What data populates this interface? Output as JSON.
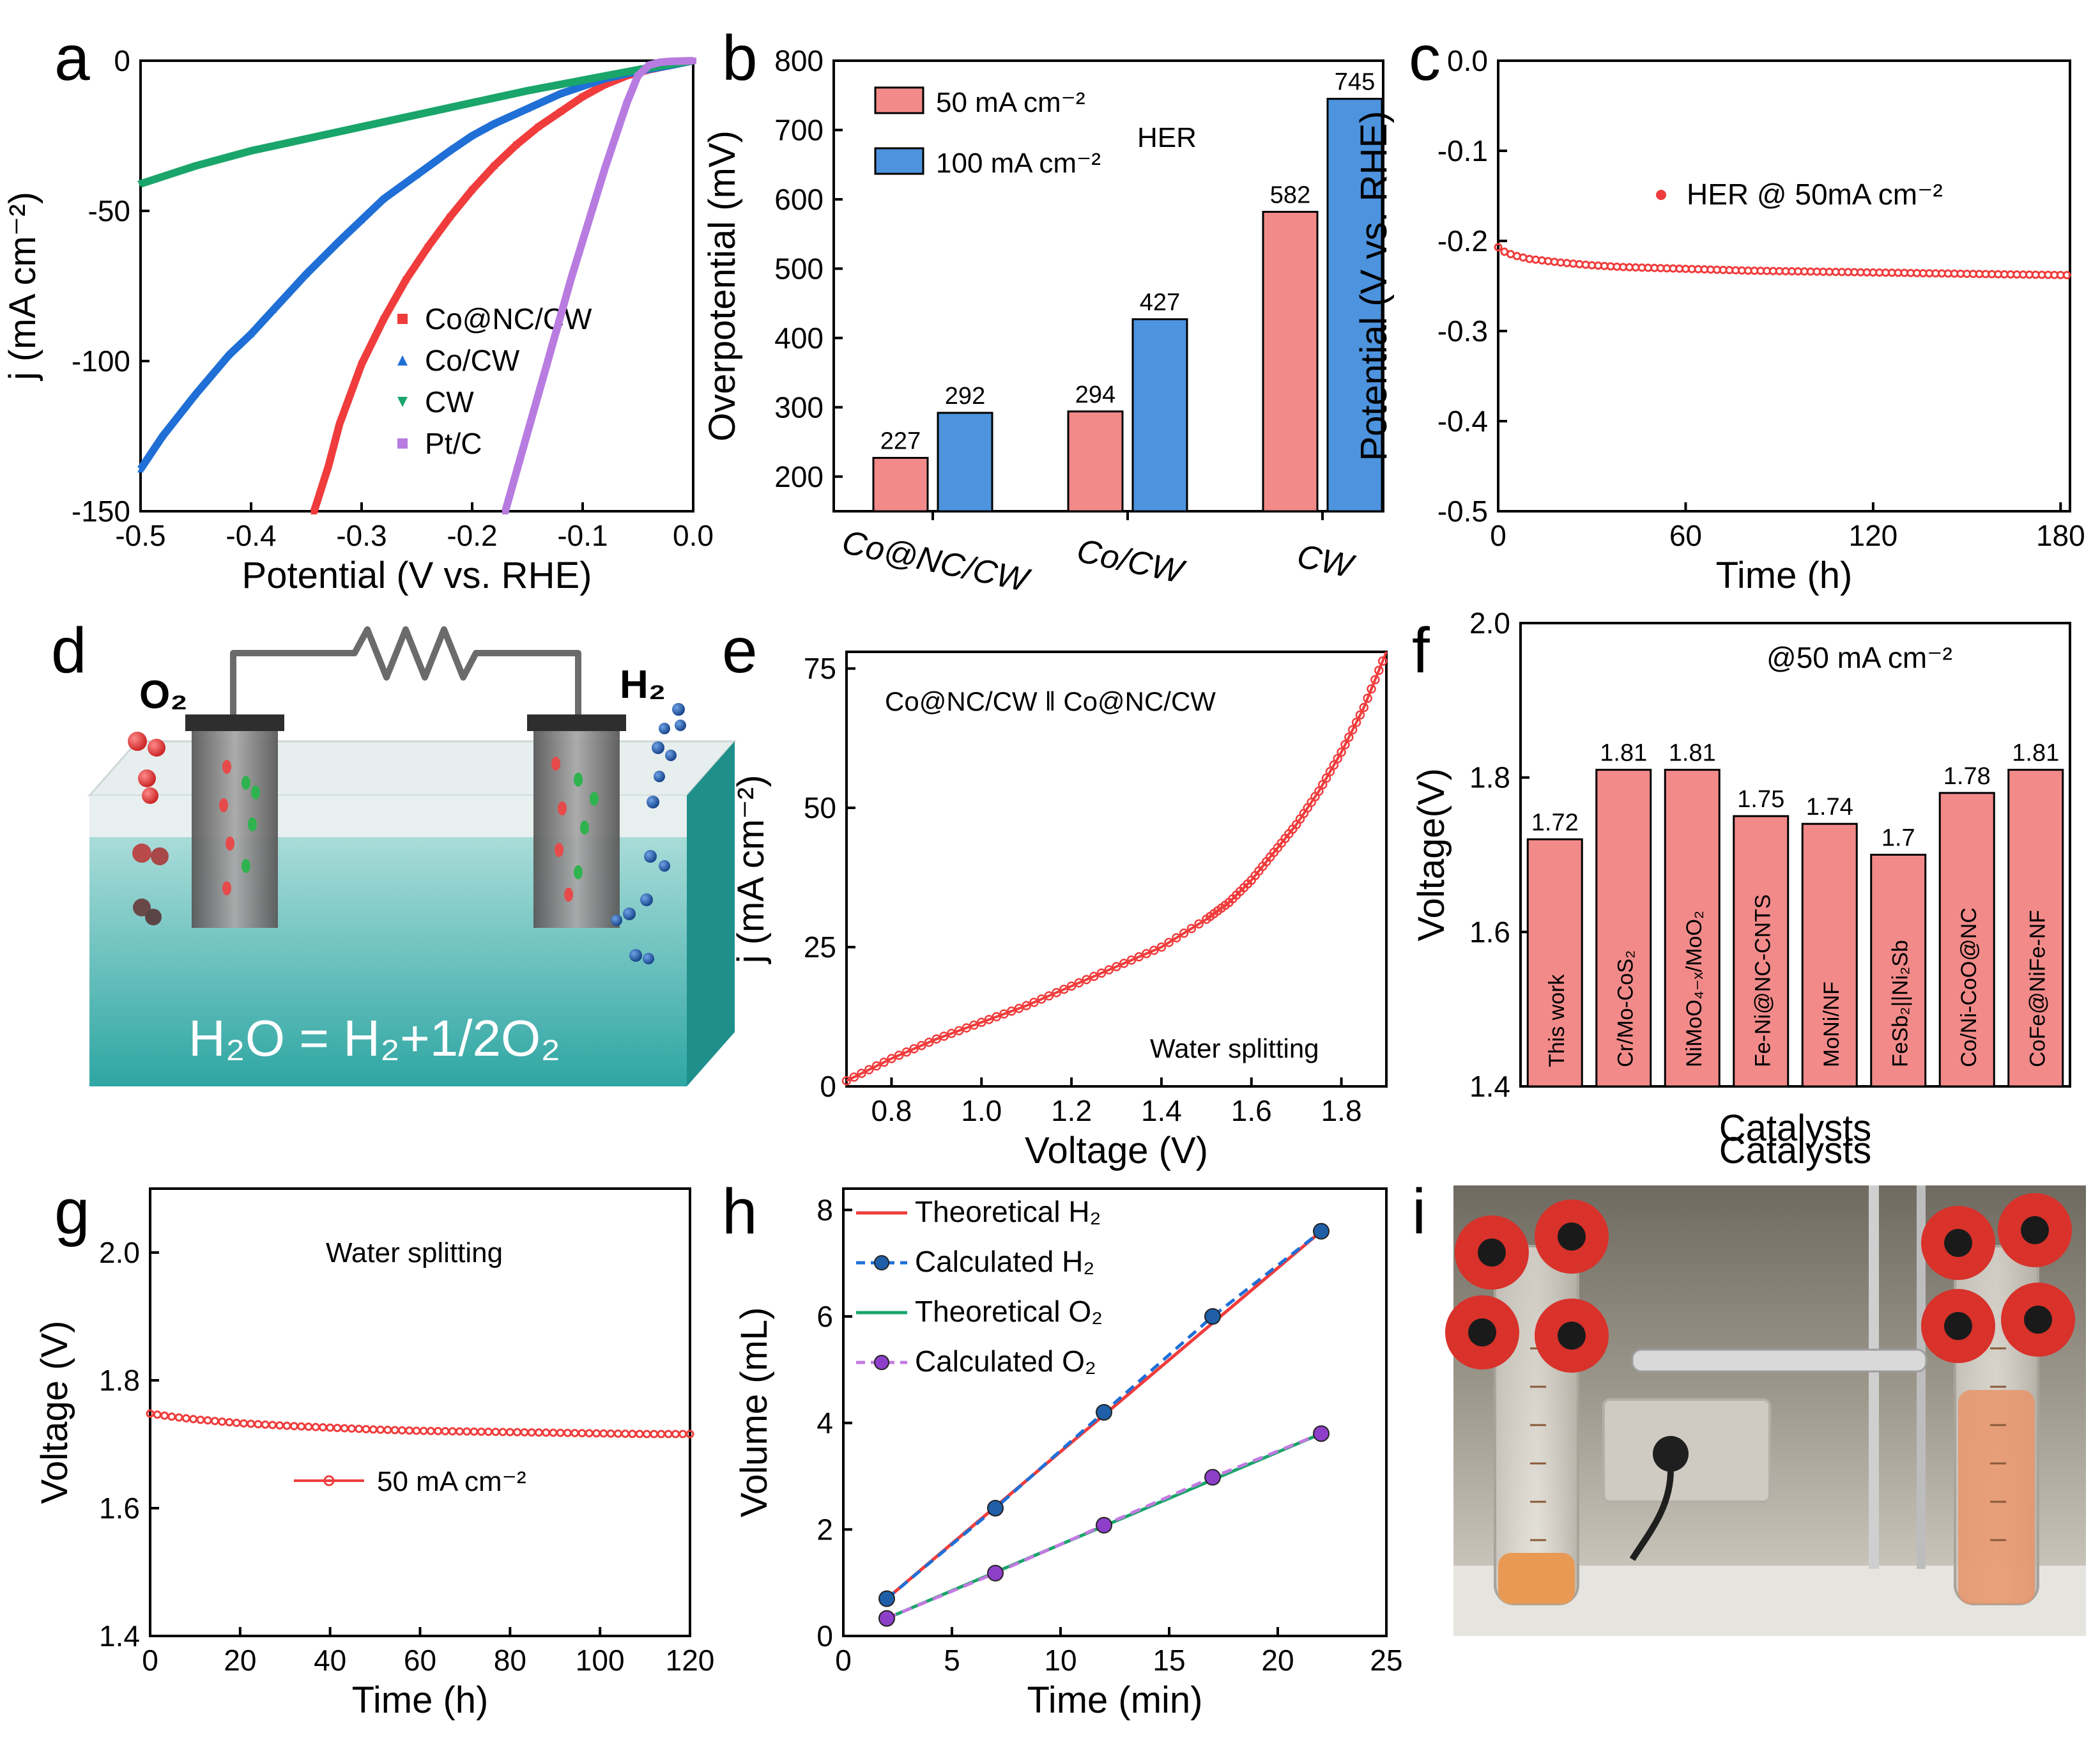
{
  "chart_data": [
    {
      "id": "a",
      "letter": "a",
      "type": "line",
      "xlabel": "Potential (V vs. RHE)",
      "ylabel": "j (mA cm⁻²)",
      "xlim": [
        -0.5,
        0.0
      ],
      "ylim": [
        -150,
        0
      ],
      "xticks": [
        -0.5,
        -0.4,
        -0.3,
        -0.2,
        -0.1,
        0.0
      ],
      "xtick_labels": [
        "-0.5",
        "-0.4",
        "-0.3",
        "-0.2",
        "-0.1",
        "0.0"
      ],
      "yticks": [
        -150,
        -100,
        -50,
        0
      ],
      "ytick_labels": [
        "-150",
        "-100",
        "-50",
        "0"
      ],
      "legend_position": "center-right",
      "series": [
        {
          "name": "Co@NC/CW",
          "color": "#f03c3c",
          "marker": "square",
          "x": [
            -0.343,
            -0.33,
            -0.32,
            -0.3,
            -0.28,
            -0.26,
            -0.24,
            -0.22,
            -0.2,
            -0.18,
            -0.16,
            -0.14,
            -0.12,
            -0.1,
            -0.08,
            -0.06,
            -0.04,
            -0.02,
            0.0
          ],
          "y": [
            -150,
            -135,
            -121,
            -101,
            -86,
            -73,
            -62,
            -52,
            -43,
            -35,
            -28,
            -22,
            -17,
            -12,
            -8,
            -5,
            -3,
            -1.5,
            0
          ]
        },
        {
          "name": "Co/CW",
          "color": "#1f6fd6",
          "marker": "triangle",
          "x": [
            -0.5,
            -0.48,
            -0.45,
            -0.42,
            -0.4,
            -0.38,
            -0.35,
            -0.32,
            -0.3,
            -0.28,
            -0.25,
            -0.22,
            -0.2,
            -0.18,
            -0.15,
            -0.12,
            -0.1,
            -0.08,
            -0.05,
            -0.02,
            0.0
          ],
          "y": [
            -136,
            -125,
            -111,
            -98,
            -91,
            -83,
            -71,
            -60,
            -53,
            -46,
            -38,
            -30,
            -25,
            -21,
            -16,
            -11,
            -8.5,
            -6,
            -3.5,
            -1.5,
            0
          ]
        },
        {
          "name": "CW",
          "color": "#1aa56a",
          "marker": "triangle-down",
          "x": [
            -0.5,
            -0.45,
            -0.4,
            -0.35,
            -0.3,
            -0.25,
            -0.2,
            -0.15,
            -0.1,
            -0.05,
            0.0
          ],
          "y": [
            -41,
            -35,
            -30,
            -26,
            -22,
            -18,
            -14,
            -10,
            -6.5,
            -3,
            0
          ]
        },
        {
          "name": "Pt/C",
          "color": "#b87ce0",
          "marker": "square",
          "x": [
            -0.17,
            -0.16,
            -0.15,
            -0.14,
            -0.13,
            -0.12,
            -0.11,
            -0.1,
            -0.09,
            -0.08,
            -0.07,
            -0.06,
            -0.05,
            -0.04,
            -0.03,
            -0.02,
            -0.01,
            0.0
          ],
          "y": [
            -150,
            -137,
            -124,
            -111,
            -98,
            -85,
            -72,
            -60,
            -48,
            -36,
            -25,
            -14,
            -5,
            -1.5,
            -0.5,
            -0.2,
            -0.1,
            0
          ]
        }
      ]
    },
    {
      "id": "b",
      "letter": "b",
      "type": "bar",
      "ylabel": "Overpotential (mV)",
      "ylim": [
        150,
        800
      ],
      "yticks": [
        200,
        300,
        400,
        500,
        600,
        700,
        800
      ],
      "ytick_labels": [
        "200",
        "300",
        "400",
        "500",
        "600",
        "700",
        "800"
      ],
      "categories": [
        "Co@NC/CW",
        "Co/CW",
        "CW"
      ],
      "legend_position": "top-left",
      "annotation": "HER",
      "series": [
        {
          "name": "50 mA cm⁻²",
          "color": "#f28a8a",
          "values": [
            227,
            294,
            582
          ],
          "labels": [
            "227",
            "294",
            "582"
          ]
        },
        {
          "name": "100 mA cm⁻²",
          "color": "#4d93de",
          "values": [
            292,
            427,
            745
          ],
          "labels": [
            "292",
            "427",
            "745"
          ]
        }
      ]
    },
    {
      "id": "c",
      "letter": "c",
      "type": "scatter",
      "xlabel": "Time (h)",
      "ylabel": "Potential (V vs. RHE)",
      "xlim": [
        0,
        183
      ],
      "ylim": [
        -0.5,
        0.0
      ],
      "xticks": [
        0,
        60,
        120,
        180
      ],
      "xtick_labels": [
        "0",
        "60",
        "120",
        "180"
      ],
      "yticks": [
        -0.5,
        -0.4,
        -0.3,
        -0.2,
        -0.1,
        0.0
      ],
      "ytick_labels": [
        "-0.5",
        "-0.4",
        "-0.3",
        "-0.2",
        "-0.1",
        "0.0"
      ],
      "legend_position": "upper-middle",
      "series": [
        {
          "name": "HER @ 50mA cm⁻²",
          "color": "#f03c3c",
          "x": [
            0,
            2,
            5,
            10,
            20,
            30,
            40,
            60,
            80,
            100,
            120,
            140,
            160,
            183
          ],
          "y": [
            -0.207,
            -0.212,
            -0.216,
            -0.22,
            -0.224,
            -0.227,
            -0.229,
            -0.231,
            -0.233,
            -0.234,
            -0.235,
            -0.236,
            -0.237,
            -0.238
          ]
        }
      ]
    },
    {
      "id": "e",
      "letter": "e",
      "type": "line",
      "xlabel": "Voltage (V)",
      "ylabel": "j (mA cm⁻²)",
      "xlim": [
        0.7,
        1.9
      ],
      "ylim": [
        0,
        78
      ],
      "xticks": [
        0.8,
        1.0,
        1.2,
        1.4,
        1.6,
        1.8
      ],
      "xtick_labels": [
        "0.8",
        "1.0",
        "1.2",
        "1.4",
        "1.6",
        "1.8"
      ],
      "yticks": [
        0,
        25,
        50,
        75
      ],
      "ytick_labels": [
        "0",
        "25",
        "50",
        "75"
      ],
      "annotations": [
        "Co@NC/CW ‖ Co@NC/CW",
        "Water splitting"
      ],
      "series": [
        {
          "name": "Co@NC/CW || Co@NC/CW",
          "color": "#f03c3c",
          "x": [
            0.7,
            0.8,
            0.9,
            1.0,
            1.1,
            1.2,
            1.3,
            1.4,
            1.5,
            1.55,
            1.6,
            1.65,
            1.7,
            1.75,
            1.8,
            1.85,
            1.9
          ],
          "y": [
            1,
            5,
            8.5,
            11.5,
            14.5,
            18,
            21.5,
            25,
            30,
            33,
            37,
            42,
            47,
            53,
            60,
            68,
            78
          ]
        }
      ]
    },
    {
      "id": "f",
      "letter": "f",
      "type": "bar",
      "xlabel": "Catalysts",
      "ylabel": "Voltage(V)",
      "ylim": [
        1.4,
        2.0
      ],
      "yticks": [
        1.4,
        1.6,
        1.8,
        2.0
      ],
      "ytick_labels": [
        "1.4",
        "1.6",
        "1.8",
        "2.0"
      ],
      "annotation": "@50 mA cm⁻²",
      "categories": [
        "This work",
        "Cr/Mo-CoS₂",
        "NiMoO₄₋ₓ/MoO₂",
        "Fe-Ni@NC-CNTS",
        "MoNi/NF",
        "FeSb₂||Ni₂Sb",
        "Co/Ni-CoO@NC",
        "CoFe@NiFe-NF"
      ],
      "series": [
        {
          "name": "Voltage",
          "color": "#f28a8a",
          "values": [
            1.72,
            1.81,
            1.81,
            1.75,
            1.74,
            1.7,
            1.78,
            1.81
          ],
          "labels": [
            "1.72",
            "1.81",
            "1.81",
            "1.75",
            "1.74",
            "1.7",
            "1.78",
            "1.81"
          ]
        }
      ]
    },
    {
      "id": "g",
      "letter": "g",
      "type": "line",
      "xlabel": "Time (h)",
      "ylabel": "Voltage (V)",
      "xlim": [
        0,
        120
      ],
      "ylim": [
        1.4,
        2.1
      ],
      "xticks": [
        0,
        20,
        40,
        60,
        80,
        100,
        120
      ],
      "xtick_labels": [
        "0",
        "20",
        "40",
        "60",
        "80",
        "100",
        "120"
      ],
      "yticks": [
        1.4,
        1.6,
        1.8,
        2.0
      ],
      "ytick_labels": [
        "1.4",
        "1.6",
        "1.8",
        "2.0"
      ],
      "annotation": "Water splitting",
      "legend_position": "center",
      "series": [
        {
          "name": "50 mA cm⁻²",
          "color": "#f03c3c",
          "x": [
            0,
            5,
            10,
            20,
            30,
            40,
            50,
            60,
            70,
            80,
            90,
            100,
            110,
            120
          ],
          "y": [
            1.748,
            1.743,
            1.739,
            1.733,
            1.729,
            1.726,
            1.723,
            1.721,
            1.72,
            1.719,
            1.718,
            1.717,
            1.716,
            1.716
          ]
        }
      ]
    },
    {
      "id": "h",
      "letter": "h",
      "type": "line",
      "xlabel": "Time (min)",
      "ylabel": "Volume (mL)",
      "xlim": [
        0,
        25
      ],
      "ylim": [
        0,
        8.4
      ],
      "xticks": [
        0,
        5,
        10,
        15,
        20,
        25
      ],
      "xtick_labels": [
        "0",
        "5",
        "10",
        "15",
        "20",
        "25"
      ],
      "yticks": [
        0,
        2,
        4,
        6,
        8
      ],
      "ytick_labels": [
        "0",
        "2",
        "4",
        "6",
        "8"
      ],
      "legend_position": "top-left",
      "series": [
        {
          "name": "Theoretical H₂",
          "color": "#f03c3c",
          "style": "solid",
          "x": [
            2,
            22
          ],
          "y": [
            0.7,
            7.6
          ]
        },
        {
          "name": "Calculated H₂",
          "color": "#1f6fd6",
          "style": "dashed",
          "marker": "circle",
          "marker_color": "#1f5fa8",
          "x": [
            2,
            7,
            12,
            17,
            22
          ],
          "y": [
            0.7,
            2.4,
            4.2,
            6.0,
            7.6
          ]
        },
        {
          "name": "Theoretical O₂",
          "color": "#1aa56a",
          "style": "solid",
          "x": [
            2,
            22
          ],
          "y": [
            0.33,
            3.8
          ]
        },
        {
          "name": "Calculated O₂",
          "color": "#c27ae0",
          "style": "dashed",
          "marker": "circle",
          "marker_color": "#8e3fc9",
          "x": [
            2,
            7,
            12,
            17,
            22
          ],
          "y": [
            0.33,
            1.18,
            2.08,
            2.98,
            3.8
          ]
        }
      ]
    }
  ],
  "panel_d": {
    "letter": "d",
    "label_o2": "O₂",
    "label_h2": "H₂",
    "equation": "H₂O = H₂+1/2O₂",
    "water_color": "#4cb6b4",
    "o2_bubble_color": "#e63a3a",
    "h2_bubble_color": "#1f5fa8"
  },
  "panel_i": {
    "letter": "i",
    "cap_color": "#d8322b",
    "liquid_color": "#e8946a"
  }
}
